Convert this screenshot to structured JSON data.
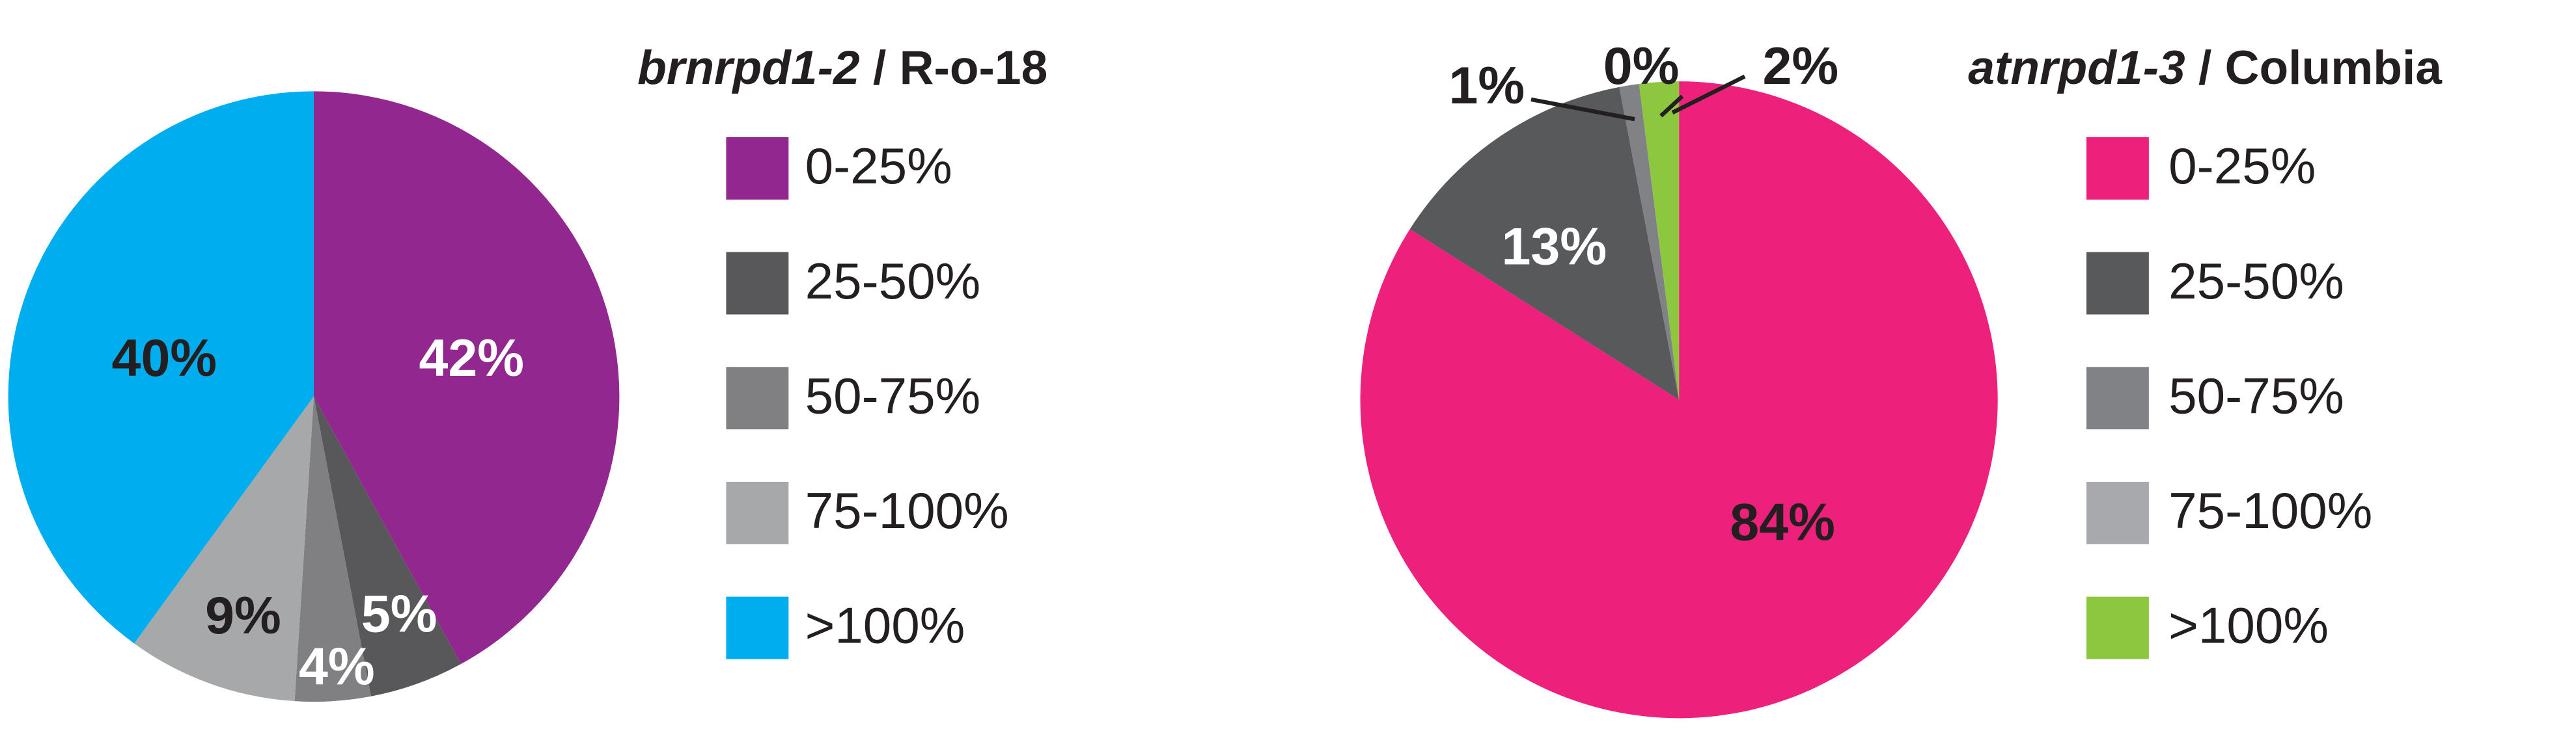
{
  "chart_data": [
    {
      "type": "pie",
      "title": "brnrpd1-2 / R-o-18",
      "categories": [
        "0-25%",
        "25-50%",
        "50-75%",
        "75-100%",
        ">100%"
      ],
      "values": [
        42,
        5,
        4,
        9,
        40
      ],
      "value_labels": [
        "42%",
        "5%",
        "4%",
        "9%",
        "40%"
      ],
      "colors": [
        "#92278f",
        "#58585a",
        "#808083",
        "#a7a8aa",
        "#00aeef"
      ]
    },
    {
      "type": "pie",
      "title": "atnrpd1-3 / Columbia",
      "categories": [
        "0-25%",
        "25-50%",
        "50-75%",
        "75-100%",
        ">100%"
      ],
      "values": [
        84,
        13,
        1,
        0,
        2
      ],
      "value_labels": [
        "84%",
        "13%",
        "1%",
        "0%",
        "2%"
      ],
      "colors": [
        "#ed217c",
        "#58595b",
        "#808285",
        "#a7a9ac",
        "#8dc63f"
      ]
    }
  ]
}
